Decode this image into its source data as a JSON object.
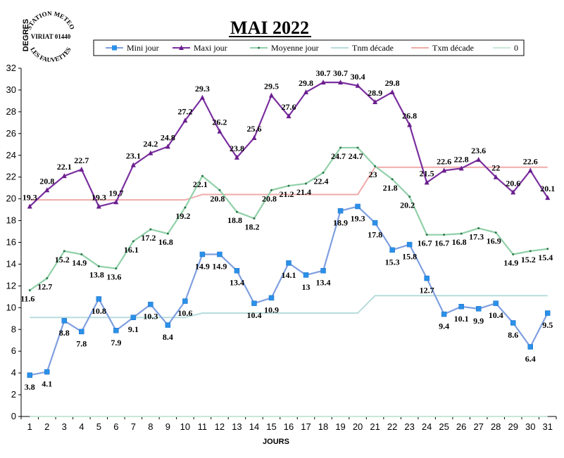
{
  "chart_data": {
    "type": "line",
    "title": "MAI 2022",
    "xlabel": "JOURS",
    "ylabel": "DEGRES",
    "ylim": [
      0,
      32
    ],
    "yticks": [
      0,
      2,
      4,
      6,
      8,
      10,
      12,
      14,
      16,
      18,
      20,
      22,
      24,
      26,
      28,
      30,
      32
    ],
    "categories": [
      "1",
      "2",
      "3",
      "4",
      "5",
      "6",
      "7",
      "8",
      "9",
      "10",
      "11",
      "12",
      "13",
      "14",
      "15",
      "16",
      "17",
      "18",
      "19",
      "20",
      "21",
      "22",
      "23",
      "24",
      "25",
      "26",
      "27",
      "28",
      "29",
      "30",
      "31"
    ],
    "grid": false,
    "legend_position": "top",
    "series": [
      {
        "name": "Mini jour",
        "color": "#7f9fe0",
        "marker": "square",
        "labels": true,
        "labelPos": "below",
        "values": [
          3.8,
          4.1,
          8.8,
          7.8,
          10.8,
          7.9,
          9.1,
          10.3,
          8.4,
          10.6,
          14.9,
          14.9,
          13.4,
          10.4,
          10.9,
          14.1,
          13,
          13.4,
          18.9,
          19.3,
          17.8,
          15.3,
          15.8,
          12.7,
          9.4,
          10.1,
          9.9,
          10.4,
          8.6,
          6.4,
          9.5
        ]
      },
      {
        "name": "Maxi jour",
        "color": "#7a2f9e",
        "marker": "triangle",
        "labels": true,
        "labelPos": "above",
        "values": [
          19.3,
          20.8,
          22.1,
          22.7,
          19.3,
          19.7,
          23.1,
          24.2,
          24.8,
          27.2,
          29.3,
          26.2,
          23.8,
          25.6,
          29.5,
          27.6,
          29.8,
          30.7,
          30.7,
          30.4,
          28.9,
          29.8,
          26.8,
          21.5,
          22.6,
          22.8,
          23.6,
          22,
          20.6,
          22.6,
          20.1
        ]
      },
      {
        "name": "Moyenne jour",
        "color": "#90d0a8",
        "marker": "dot",
        "labels": true,
        "labelPos": "left",
        "values": [
          11.6,
          12.7,
          15.2,
          14.9,
          13.8,
          13.6,
          16.1,
          17.2,
          16.8,
          19.2,
          22.1,
          20.8,
          18.8,
          18.2,
          20.8,
          21.2,
          21.4,
          22.4,
          24.7,
          24.7,
          23,
          21.8,
          20.2,
          16.7,
          16.7,
          16.8,
          17.3,
          16.9,
          14.9,
          15.2,
          15.4
        ]
      },
      {
        "name": "Tnm décade",
        "color": "#b8dcdc",
        "marker": "none",
        "labels": false,
        "values": [
          9.1,
          9.1,
          9.1,
          9.1,
          9.1,
          9.1,
          9.1,
          9.1,
          9.1,
          9.1,
          9.5,
          9.5,
          9.5,
          9.5,
          9.5,
          9.5,
          9.5,
          9.5,
          9.5,
          9.5,
          11.1,
          11.1,
          11.1,
          11.1,
          11.1,
          11.1,
          11.1,
          11.1,
          11.1,
          11.1,
          11.1
        ]
      },
      {
        "name": "Txm décade",
        "color": "#f0aaaa",
        "marker": "none",
        "labels": false,
        "values": [
          19.9,
          19.9,
          19.9,
          19.9,
          19.9,
          19.9,
          19.9,
          19.9,
          19.9,
          19.9,
          20.4,
          20.4,
          20.4,
          20.4,
          20.4,
          20.4,
          20.4,
          20.4,
          20.4,
          20.4,
          22.9,
          22.9,
          22.9,
          22.9,
          22.9,
          22.9,
          22.9,
          22.9,
          22.9,
          22.9,
          22.9
        ]
      },
      {
        "name": "0",
        "color": "#c8e8d8",
        "marker": "none",
        "labels": false,
        "values": [
          0,
          0,
          0,
          0,
          0,
          0,
          0,
          0,
          0,
          0,
          0,
          0,
          0,
          0,
          0,
          0,
          0,
          0,
          0,
          0,
          0,
          0,
          0,
          0,
          0,
          0,
          0,
          0,
          0,
          0,
          0
        ]
      }
    ]
  },
  "logo": {
    "line1": "STATION METEO",
    "line2": "VIRIAT 01440",
    "line3": "LES FAUVETTES"
  }
}
